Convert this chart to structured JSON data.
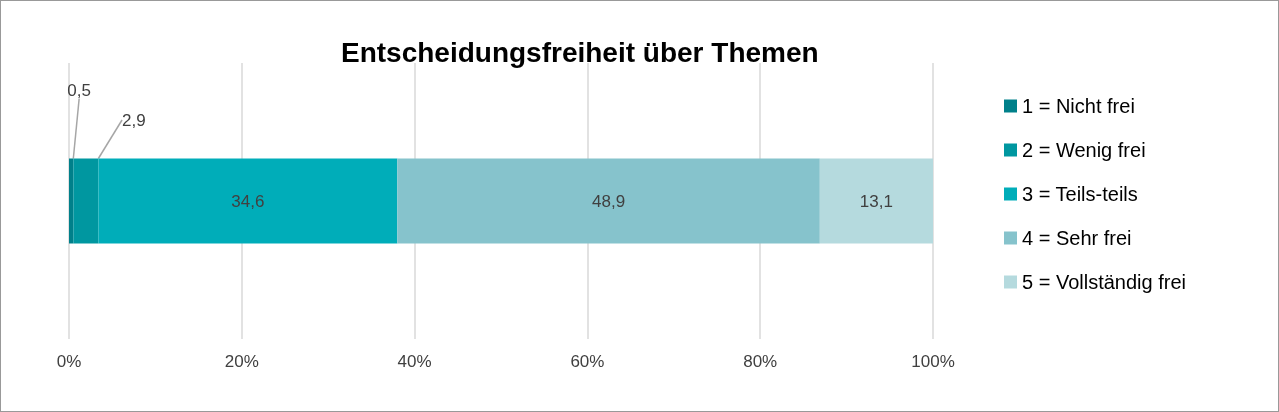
{
  "chart_data": {
    "type": "bar",
    "orientation": "horizontal",
    "stacked": true,
    "title": "Entscheidungsfreiheit über Themen",
    "categories": [
      null
    ],
    "series": [
      {
        "name": "1 = Nicht frei",
        "color": "#00808a",
        "values": [
          0.5
        ],
        "value_labels": [
          "0,5"
        ]
      },
      {
        "name": "2 = Wenig frei",
        "color": "#0097a0",
        "values": [
          2.9
        ],
        "value_labels": [
          "2,9"
        ]
      },
      {
        "name": "3 = Teils-teils",
        "color": "#00adb9",
        "values": [
          34.6
        ],
        "value_labels": [
          "34,6"
        ]
      },
      {
        "name": "4 = Sehr frei",
        "color": "#86c3cc",
        "values": [
          48.9
        ],
        "value_labels": [
          "48,9"
        ]
      },
      {
        "name": "5 = Vollständig frei",
        "color": "#b5dade",
        "values": [
          13.1
        ],
        "value_labels": [
          "13,1"
        ]
      }
    ],
    "xlim": [
      0,
      100
    ],
    "xticks": [
      {
        "value": 0,
        "label": "0%"
      },
      {
        "value": 20,
        "label": "20%"
      },
      {
        "value": 40,
        "label": "40%"
      },
      {
        "value": 60,
        "label": "60%"
      },
      {
        "value": 80,
        "label": "80%"
      },
      {
        "value": 100,
        "label": "100%"
      }
    ],
    "grid": "x",
    "legend": "right"
  }
}
